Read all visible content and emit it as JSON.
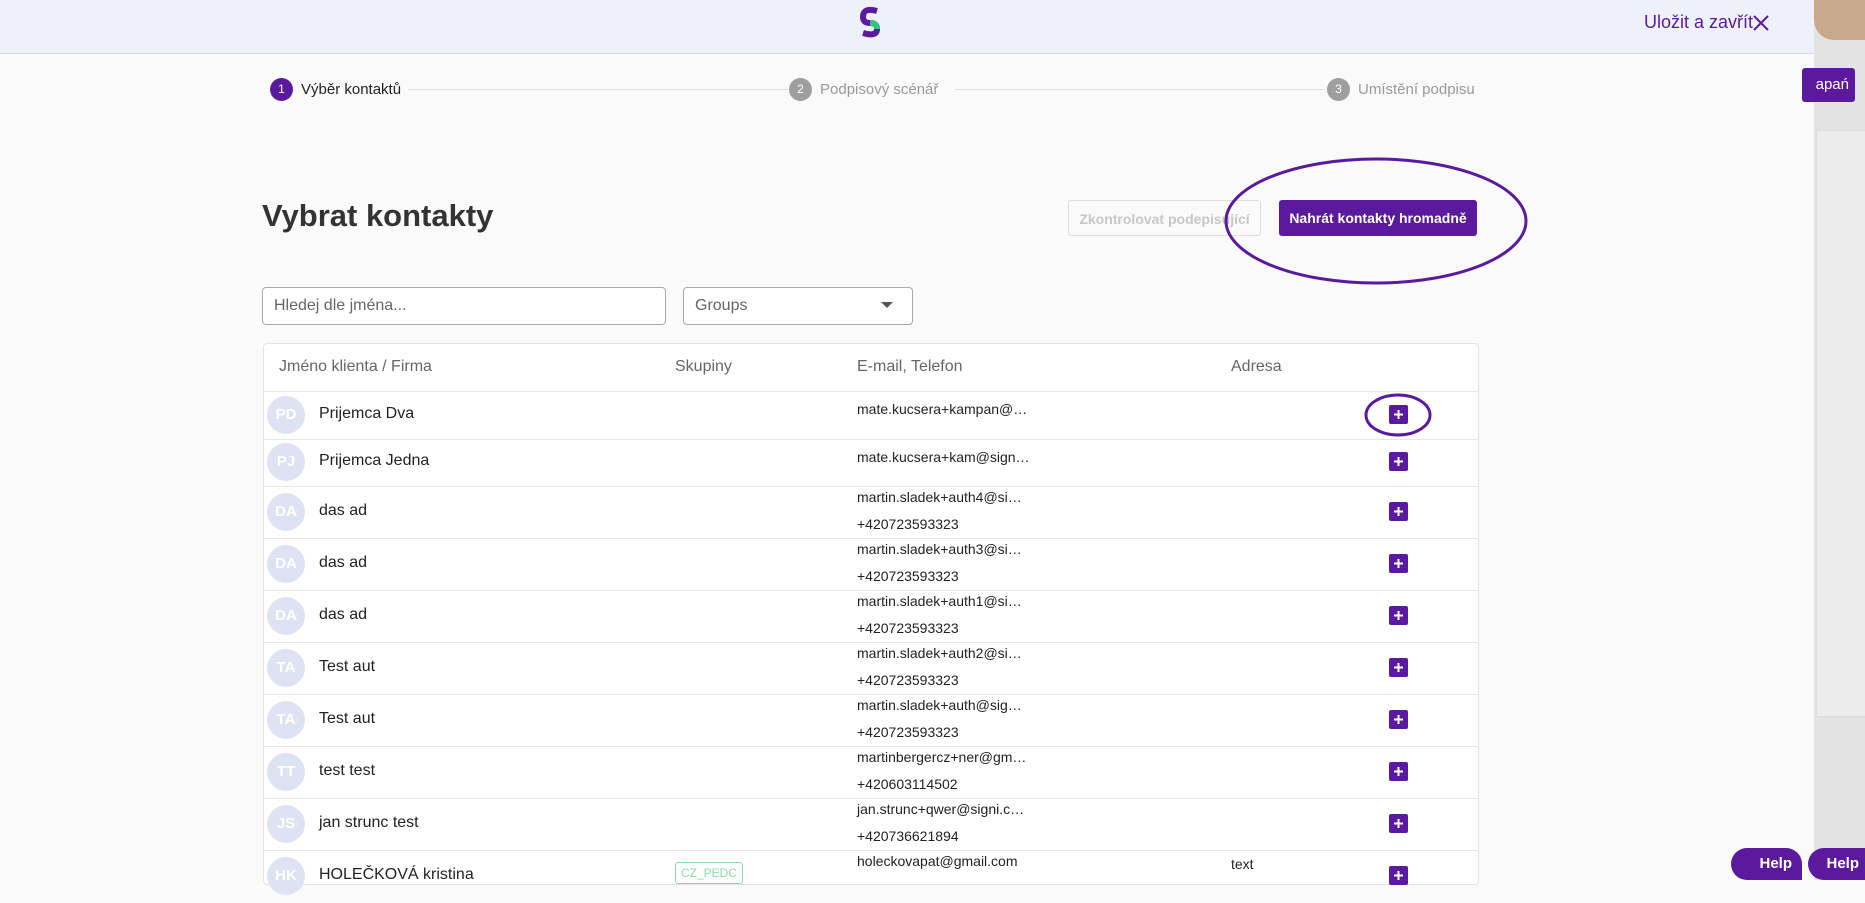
{
  "header": {
    "save_close": "Uložit a zavřít",
    "help": "Help"
  },
  "background": {
    "button": "apań"
  },
  "steps": [
    {
      "number": "1",
      "label": "Výběr kontaktů"
    },
    {
      "number": "2",
      "label": "Podpisový scénář"
    },
    {
      "number": "3",
      "label": "Umístění podpisu"
    }
  ],
  "page": {
    "title": "Vybrat kontakty",
    "check_button": "Zkontrolovat podepisující",
    "upload_button": "Nahrát kontakty hromadně",
    "search_placeholder": "Hledej dle jména...",
    "groups_placeholder": "Groups"
  },
  "table": {
    "headers": [
      "Jméno klienta / Firma",
      "Skupiny",
      "E-mail, Telefon",
      "Adresa"
    ],
    "rows": [
      {
        "initials": "PD",
        "name": "Prijemca Dva",
        "email": "mate.kucsera+kampan@…"
      },
      {
        "initials": "PJ",
        "name": "Prijemca Jedna",
        "email": "mate.kucsera+kam@sign…"
      },
      {
        "initials": "DA",
        "name": "das ad",
        "email": "martin.sladek+auth4@si…",
        "phone": "+420723593323"
      },
      {
        "initials": "DA",
        "name": "das ad",
        "email": "martin.sladek+auth3@si…",
        "phone": "+420723593323"
      },
      {
        "initials": "DA",
        "name": "das ad",
        "email": "martin.sladek+auth1@si…",
        "phone": "+420723593323"
      },
      {
        "initials": "TA",
        "name": "Test aut",
        "email": "martin.sladek+auth2@si…",
        "phone": "+420723593323"
      },
      {
        "initials": "TA",
        "name": "Test aut",
        "email": "martin.sladek+auth@sig…",
        "phone": "+420723593323"
      },
      {
        "initials": "TT",
        "name": "test test",
        "email": "martinbergercz+ner@gm…",
        "phone": "+420603114502"
      },
      {
        "initials": "JS",
        "name": "jan strunc test",
        "email": "jan.strunc+qwer@signi.c…",
        "phone": "+420736621894"
      },
      {
        "initials": "HK",
        "name": "HOLEČKOVÁ kristina",
        "email": "holeckovapat@gmail.com",
        "group": "CZ_PEDC",
        "address": "text"
      }
    ]
  }
}
